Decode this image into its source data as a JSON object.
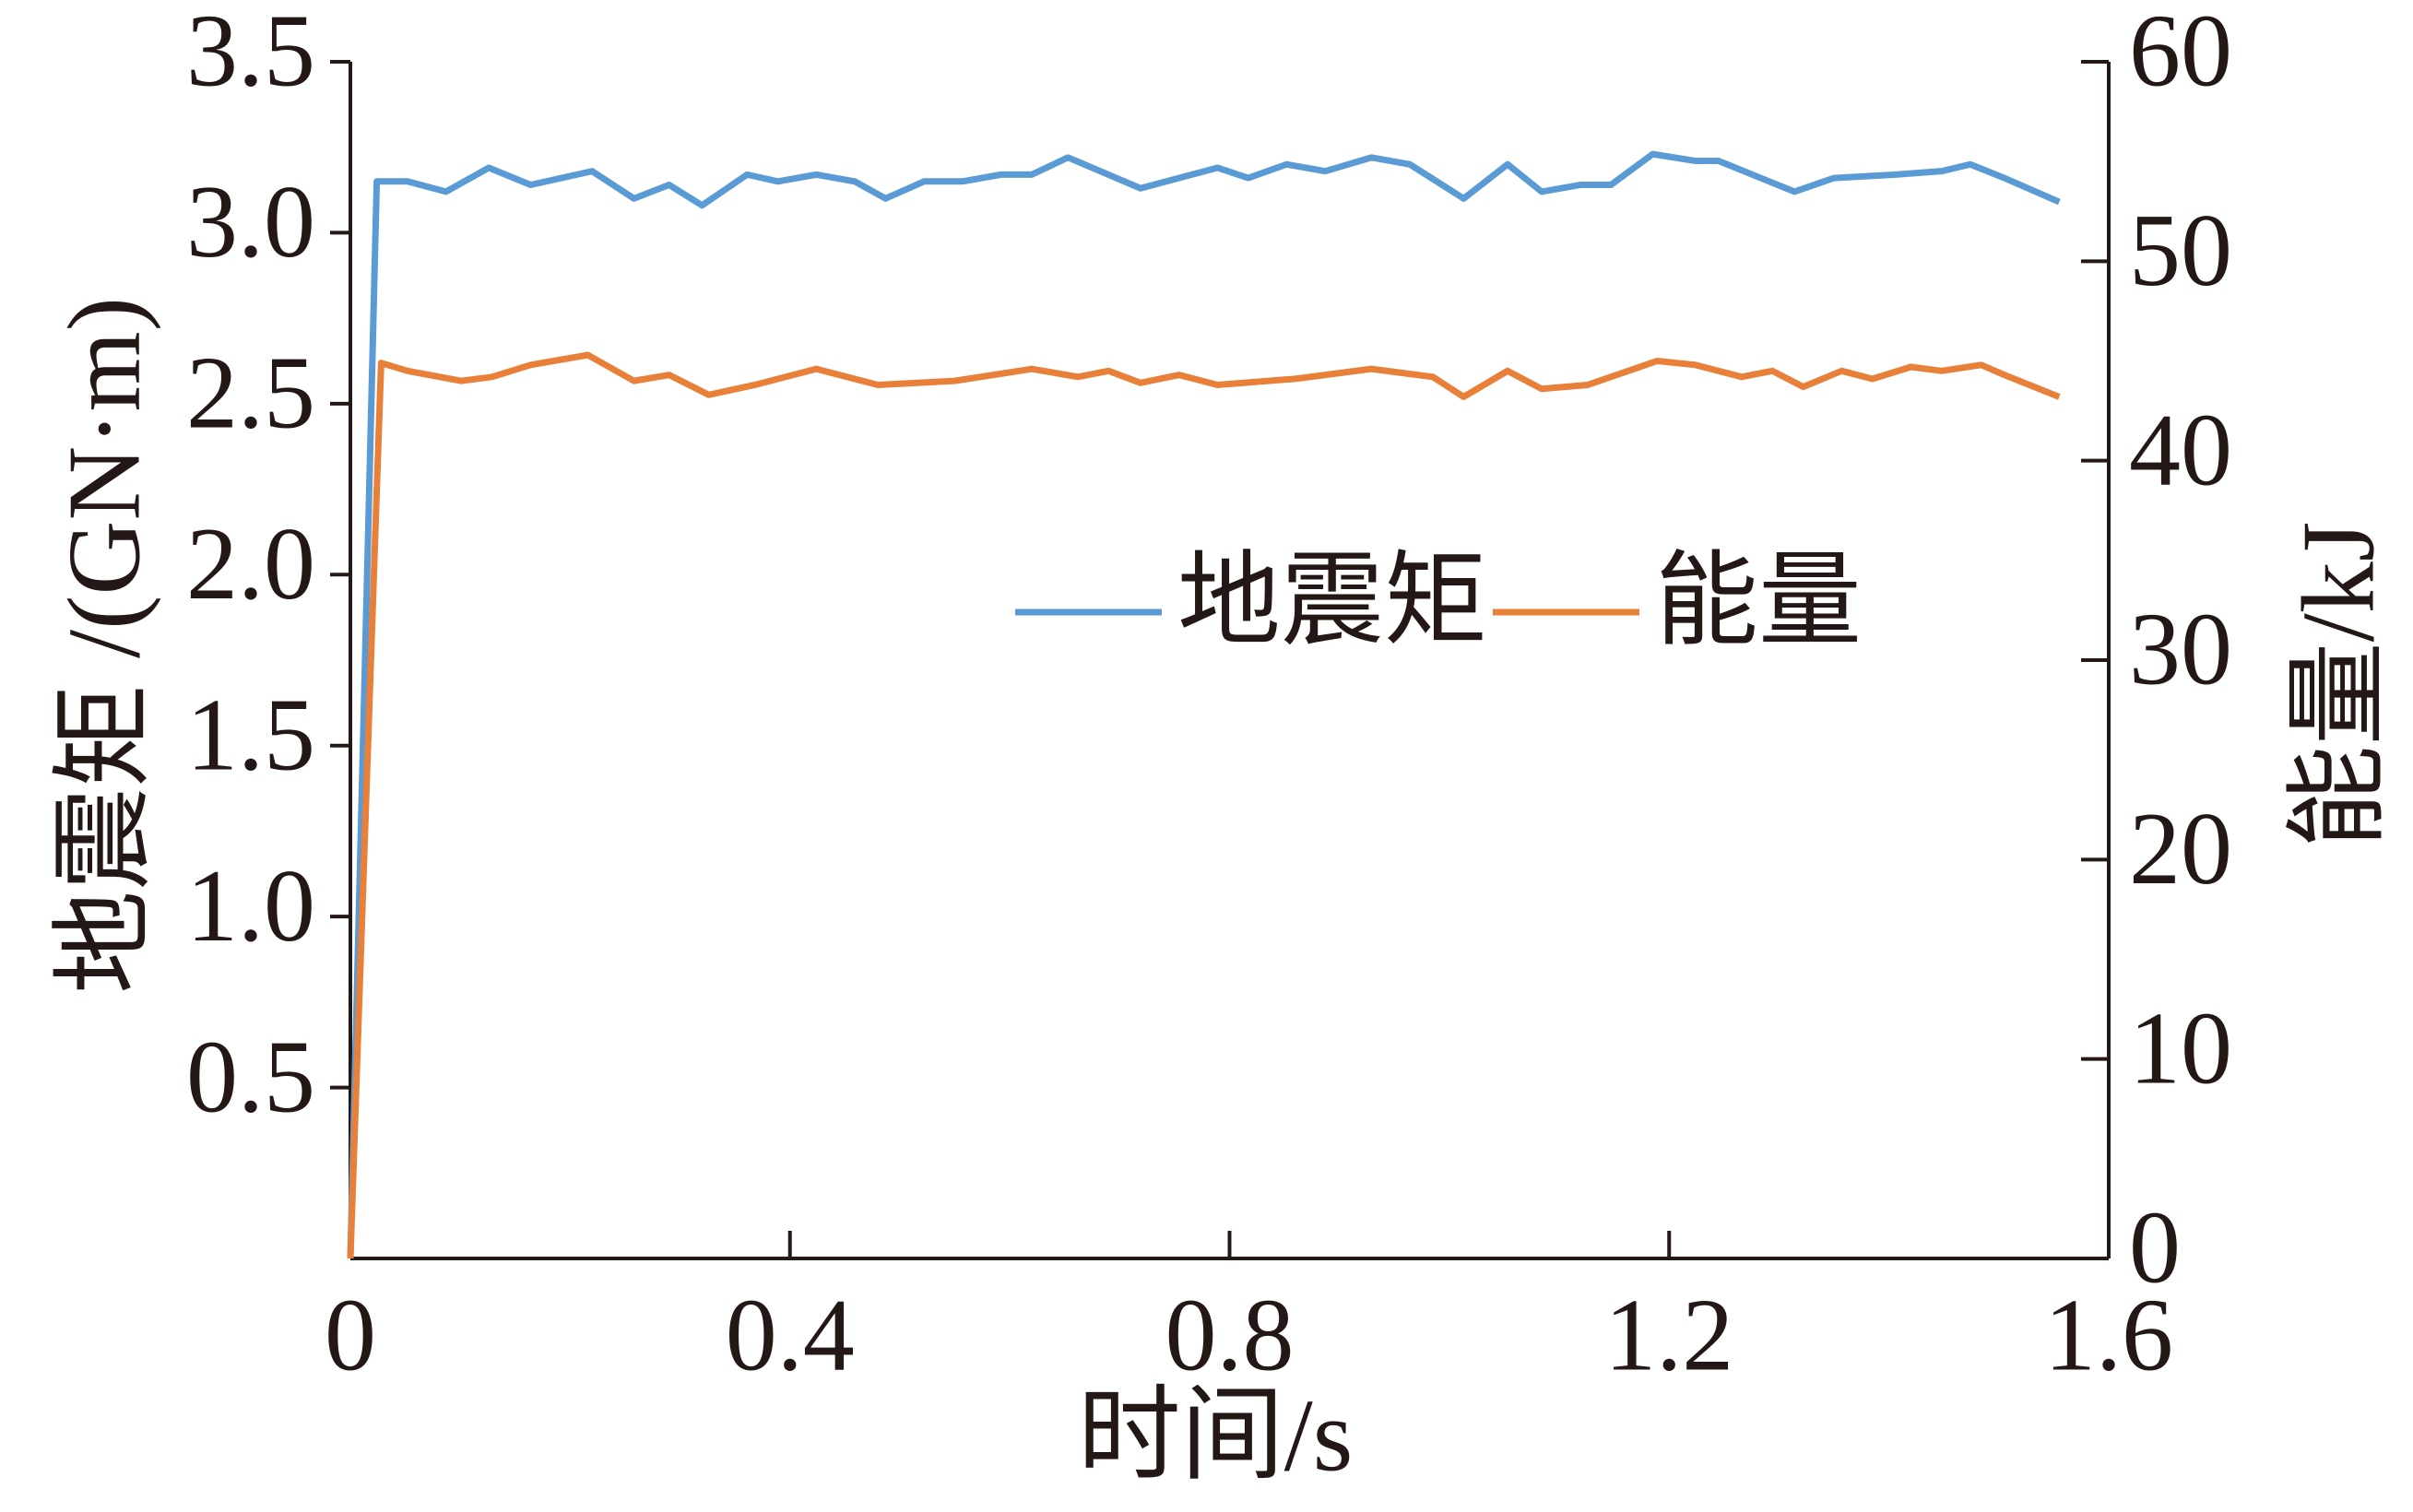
{
  "chart_data": {
    "type": "line",
    "xlabel": "时间/s",
    "ylabel": "地震矩 /(GN·m)",
    "y2label": "能量/kJ",
    "xlim": [
      0,
      1.6
    ],
    "xticks": [
      0,
      0.4,
      0.8,
      1.2,
      1.6
    ],
    "ylim": [
      0,
      3.5
    ],
    "yticks": [
      0.5,
      {
        "value": 1,
        "label": "1.0"
      },
      1.5,
      {
        "value": 2,
        "label": "2.0"
      },
      2.5,
      {
        "value": 3,
        "label": "3.0"
      },
      3.5
    ],
    "y2lim": [
      0,
      60
    ],
    "y2ticks": [
      0,
      10,
      20,
      30,
      40,
      50,
      60
    ],
    "series": [
      {
        "name": "地震矩",
        "color": "#5b9bd5",
        "axis": "y",
        "x": [
          0,
          0.024,
          0.052,
          0.087,
          0.126,
          0.164,
          0.22,
          0.258,
          0.29,
          0.32,
          0.361,
          0.389,
          0.424,
          0.459,
          0.487,
          0.522,
          0.557,
          0.592,
          0.62,
          0.653,
          0.719,
          0.789,
          0.817,
          0.852,
          0.887,
          0.929,
          0.964,
          1.013,
          1.053,
          1.084,
          1.119,
          1.147,
          1.185,
          1.224,
          1.245,
          1.314,
          1.35,
          1.406,
          1.448,
          1.474,
          1.505,
          1.555
        ],
        "values": [
          0,
          3.15,
          3.15,
          3.12,
          3.19,
          3.14,
          3.18,
          3.1,
          3.14,
          3.08,
          3.17,
          3.15,
          3.17,
          3.15,
          3.1,
          3.15,
          3.15,
          3.17,
          3.17,
          3.22,
          3.13,
          3.19,
          3.16,
          3.2,
          3.18,
          3.22,
          3.2,
          3.1,
          3.2,
          3.12,
          3.14,
          3.14,
          3.23,
          3.21,
          3.21,
          3.12,
          3.16,
          3.17,
          3.18,
          3.2,
          3.16,
          3.09
        ]
      },
      {
        "name": "能量",
        "color": "#e8803a",
        "axis": "y2",
        "x": [
          0,
          0.028,
          0.052,
          0.101,
          0.129,
          0.164,
          0.216,
          0.258,
          0.29,
          0.326,
          0.368,
          0.424,
          0.48,
          0.55,
          0.62,
          0.662,
          0.69,
          0.719,
          0.754,
          0.789,
          0.859,
          0.929,
          0.985,
          1.013,
          1.053,
          1.084,
          1.126,
          1.189,
          1.224,
          1.266,
          1.294,
          1.322,
          1.357,
          1.385,
          1.42,
          1.448,
          1.484,
          1.505,
          1.555
        ],
        "values": [
          0,
          44.9,
          44.5,
          44,
          44.2,
          44.8,
          45.3,
          44,
          44.3,
          43.3,
          43.8,
          44.6,
          43.8,
          44,
          44.6,
          44.2,
          44.5,
          43.9,
          44.3,
          43.8,
          44.1,
          44.6,
          44.2,
          43.2,
          44.5,
          43.6,
          43.8,
          45,
          44.8,
          44.2,
          44.5,
          43.7,
          44.5,
          44.1,
          44.7,
          44.5,
          44.8,
          44.3,
          43.2
        ]
      }
    ]
  }
}
